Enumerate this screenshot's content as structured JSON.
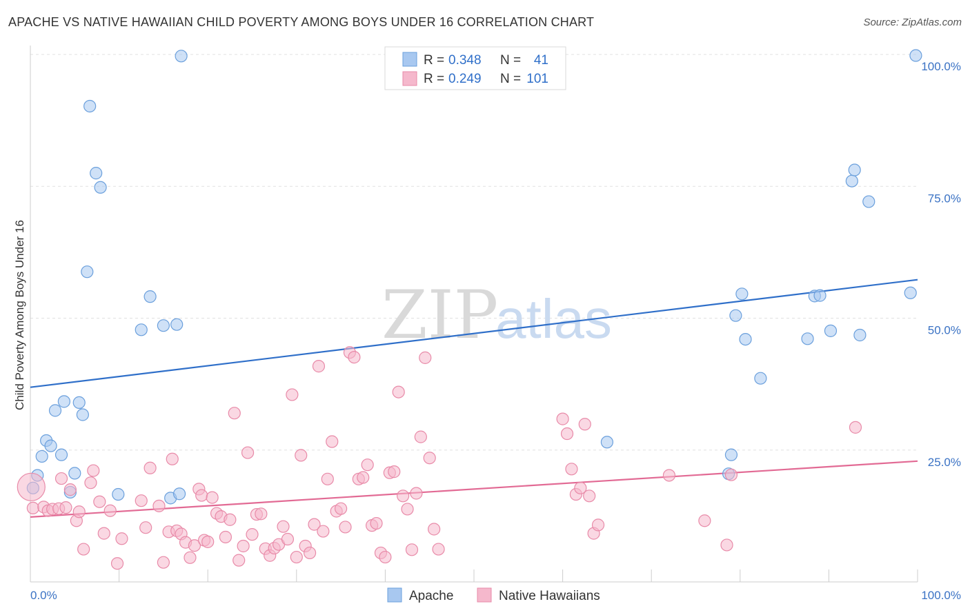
{
  "title": "APACHE VS NATIVE HAWAIIAN CHILD POVERTY AMONG BOYS UNDER 16 CORRELATION CHART",
  "source": "Source: ZipAtlas.com",
  "watermark": {
    "zip": "ZIP",
    "atlas": "atlas"
  },
  "legend": {
    "rows": [
      {
        "r_label": "R = ",
        "r_value": "0.348",
        "n_label": "N = ",
        "n_value": "41"
      },
      {
        "r_label": "R = ",
        "r_value": "0.249",
        "n_label": "N = ",
        "n_value": "101"
      }
    ]
  },
  "bottom_legend": [
    "Apache",
    "Native Hawaiians"
  ],
  "chart_data": {
    "type": "scatter",
    "title": "APACHE VS NATIVE HAWAIIAN CHILD POVERTY AMONG BOYS UNDER 16 CORRELATION CHART",
    "xlabel": "",
    "ylabel": "Child Poverty Among Boys Under 16",
    "xlim": [
      0,
      100
    ],
    "ylim": [
      0,
      100
    ],
    "x_tick_labels": [
      "0.0%",
      "100.0%"
    ],
    "y_tick_labels": [
      "25.0%",
      "50.0%",
      "75.0%",
      "100.0%"
    ],
    "y_ticks": [
      25,
      50,
      75,
      100
    ],
    "grid": true,
    "legend_position": "top-center",
    "series": [
      {
        "name": "Apache",
        "color": "#a8c8f0",
        "edge": "#6a9fdc",
        "line_color": "#2f6fc9",
        "trend": [
          [
            0,
            36.9
          ],
          [
            100,
            57.3
          ]
        ],
        "points": [
          [
            0.3,
            17.8
          ],
          [
            0.8,
            20.2
          ],
          [
            1.3,
            23.8
          ],
          [
            1.8,
            26.8
          ],
          [
            2.3,
            25.8
          ],
          [
            2.8,
            32.5
          ],
          [
            3.5,
            24.1
          ],
          [
            3.8,
            34.2
          ],
          [
            4.5,
            17.0
          ],
          [
            5.0,
            20.6
          ],
          [
            5.5,
            34.0
          ],
          [
            5.9,
            31.7
          ],
          [
            6.4,
            58.8
          ],
          [
            6.7,
            90.2
          ],
          [
            7.4,
            77.5
          ],
          [
            7.9,
            74.8
          ],
          [
            9.9,
            16.6
          ],
          [
            12.5,
            47.8
          ],
          [
            13.5,
            54.1
          ],
          [
            15.0,
            48.6
          ],
          [
            15.8,
            15.9
          ],
          [
            16.5,
            48.8
          ],
          [
            16.8,
            16.7
          ],
          [
            17.0,
            99.7
          ],
          [
            65.0,
            26.5
          ],
          [
            78.7,
            20.5
          ],
          [
            79.0,
            24.1
          ],
          [
            79.5,
            50.5
          ],
          [
            80.2,
            54.6
          ],
          [
            80.6,
            46.0
          ],
          [
            82.3,
            38.6
          ],
          [
            87.6,
            46.1
          ],
          [
            88.4,
            54.2
          ],
          [
            89.0,
            54.3
          ],
          [
            90.2,
            47.6
          ],
          [
            92.6,
            76.0
          ],
          [
            92.9,
            78.1
          ],
          [
            93.5,
            46.8
          ],
          [
            94.5,
            72.1
          ],
          [
            99.2,
            54.8
          ],
          [
            99.8,
            99.8
          ]
        ]
      },
      {
        "name": "Native Hawaiians",
        "color": "#f5b8cc",
        "edge": "#e88aa8",
        "line_color": "#e26a94",
        "trend": [
          [
            0,
            12.3
          ],
          [
            100,
            22.9
          ]
        ],
        "points": [
          [
            0.3,
            14.0
          ],
          [
            1.5,
            14.2
          ],
          [
            2.0,
            13.5
          ],
          [
            2.5,
            13.8
          ],
          [
            3.2,
            13.9
          ],
          [
            3.5,
            19.6
          ],
          [
            4.0,
            14.1
          ],
          [
            4.5,
            17.5
          ],
          [
            5.2,
            11.6
          ],
          [
            5.5,
            13.3
          ],
          [
            6.0,
            6.2
          ],
          [
            6.8,
            18.8
          ],
          [
            7.1,
            21.1
          ],
          [
            7.8,
            15.2
          ],
          [
            8.3,
            9.2
          ],
          [
            9.0,
            13.5
          ],
          [
            9.8,
            3.5
          ],
          [
            10.3,
            8.2
          ],
          [
            12.5,
            15.4
          ],
          [
            13.0,
            10.3
          ],
          [
            13.5,
            21.6
          ],
          [
            14.5,
            14.4
          ],
          [
            15.0,
            3.7
          ],
          [
            15.6,
            9.5
          ],
          [
            16.0,
            23.3
          ],
          [
            16.5,
            9.7
          ],
          [
            17.0,
            9.1
          ],
          [
            17.5,
            7.5
          ],
          [
            18.0,
            4.6
          ],
          [
            18.5,
            6.9
          ],
          [
            19.0,
            17.6
          ],
          [
            19.3,
            16.4
          ],
          [
            19.6,
            7.9
          ],
          [
            20.0,
            7.6
          ],
          [
            20.5,
            16.0
          ],
          [
            21.0,
            13.0
          ],
          [
            21.5,
            12.4
          ],
          [
            22.0,
            8.5
          ],
          [
            22.5,
            11.8
          ],
          [
            23.0,
            32.0
          ],
          [
            23.5,
            4.1
          ],
          [
            24.0,
            6.8
          ],
          [
            24.5,
            24.5
          ],
          [
            25.0,
            9.0
          ],
          [
            25.5,
            12.8
          ],
          [
            26.0,
            12.9
          ],
          [
            26.5,
            6.3
          ],
          [
            27.0,
            5.0
          ],
          [
            27.5,
            6.4
          ],
          [
            28.0,
            7.1
          ],
          [
            28.5,
            10.5
          ],
          [
            29.0,
            8.1
          ],
          [
            29.5,
            35.5
          ],
          [
            30.0,
            4.7
          ],
          [
            30.5,
            24.0
          ],
          [
            31.0,
            6.8
          ],
          [
            31.5,
            5.5
          ],
          [
            32.0,
            10.9
          ],
          [
            32.5,
            40.9
          ],
          [
            33.0,
            9.6
          ],
          [
            33.5,
            19.5
          ],
          [
            34.0,
            26.6
          ],
          [
            34.5,
            13.4
          ],
          [
            35.0,
            13.9
          ],
          [
            35.5,
            10.4
          ],
          [
            36.0,
            43.5
          ],
          [
            36.5,
            42.6
          ],
          [
            37.0,
            19.5
          ],
          [
            37.5,
            19.8
          ],
          [
            38.0,
            22.2
          ],
          [
            38.5,
            10.7
          ],
          [
            39.0,
            11.1
          ],
          [
            39.5,
            5.5
          ],
          [
            40.0,
            4.7
          ],
          [
            40.5,
            20.7
          ],
          [
            41.0,
            20.9
          ],
          [
            41.5,
            36.0
          ],
          [
            42.0,
            16.3
          ],
          [
            42.5,
            13.8
          ],
          [
            43.0,
            6.1
          ],
          [
            43.5,
            16.8
          ],
          [
            44.0,
            27.5
          ],
          [
            44.5,
            42.5
          ],
          [
            45.0,
            23.5
          ],
          [
            45.5,
            10.0
          ],
          [
            46.0,
            6.2
          ],
          [
            60.0,
            30.9
          ],
          [
            60.5,
            28.1
          ],
          [
            61.0,
            21.4
          ],
          [
            61.5,
            16.6
          ],
          [
            62.0,
            17.8
          ],
          [
            62.5,
            29.9
          ],
          [
            63.0,
            16.3
          ],
          [
            63.5,
            9.2
          ],
          [
            64.0,
            10.8
          ],
          [
            72.0,
            20.2
          ],
          [
            76.0,
            11.6
          ],
          [
            78.5,
            7.0
          ],
          [
            79.0,
            20.3
          ],
          [
            93.0,
            29.3
          ],
          [
            0.1,
            18.0
          ]
        ]
      }
    ]
  }
}
